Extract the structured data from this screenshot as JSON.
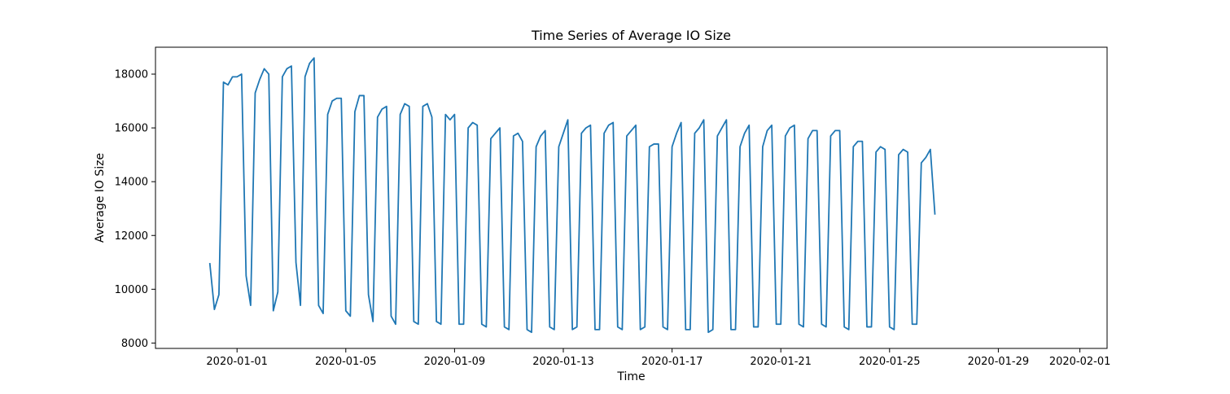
{
  "chart_data": {
    "type": "line",
    "title": "Time Series of Average IO Size",
    "xlabel": "Time",
    "ylabel": "Average IO Size",
    "grid": false,
    "legend": "none",
    "xlim": [
      "2019-12-29",
      "2020-02-02"
    ],
    "ylim": [
      7800,
      19000
    ],
    "x_ticks": [
      "2020-01-01",
      "2020-01-05",
      "2020-01-09",
      "2020-01-13",
      "2020-01-17",
      "2020-01-21",
      "2020-01-25",
      "2020-01-29",
      "2020-02-01"
    ],
    "y_ticks": [
      8000,
      10000,
      12000,
      14000,
      16000,
      18000
    ],
    "line_color": "#1f77b4",
    "series": [
      {
        "x_start": "2019-12-31",
        "interval_hours": 4,
        "values": [
          10950,
          9250,
          9800,
          17700,
          17600,
          17900,
          17900,
          18000,
          10500,
          9400,
          17300,
          17800,
          18200,
          18000,
          9200,
          9900,
          17900,
          18200,
          18300,
          11000,
          9400,
          17900,
          18400,
          18600,
          9400,
          9100,
          16500,
          17000,
          17100,
          17100,
          9200,
          9000,
          16600,
          17200,
          17200,
          9800,
          8800,
          16400,
          16700,
          16800,
          9000,
          8700,
          16500,
          16900,
          16800,
          8800,
          8700,
          16800,
          16900,
          16400,
          8800,
          8700,
          16500,
          16300,
          16500,
          8700,
          8700,
          16000,
          16200,
          16100,
          8700,
          8600,
          15600,
          15800,
          16000,
          8600,
          8500,
          15700,
          15800,
          15500,
          8500,
          8400,
          15300,
          15700,
          15900,
          8600,
          8500,
          15300,
          15800,
          16300,
          8500,
          8600,
          15800,
          16000,
          16100,
          8500,
          8500,
          15800,
          16100,
          16200,
          8600,
          8500,
          15700,
          15900,
          16100,
          8500,
          8600,
          15300,
          15400,
          15400,
          8600,
          8500,
          15300,
          15800,
          16200,
          8500,
          8500,
          15800,
          16000,
          16300,
          8400,
          8500,
          15700,
          16000,
          16300,
          8500,
          8500,
          15300,
          15800,
          16100,
          8600,
          8600,
          15300,
          15900,
          16100,
          8700,
          8700,
          15700,
          16000,
          16100,
          8700,
          8600,
          15600,
          15900,
          15900,
          8700,
          8600,
          15700,
          15900,
          15900,
          8600,
          8500,
          15300,
          15500,
          15500,
          8600,
          8600,
          15100,
          15300,
          15200,
          8600,
          8500,
          15000,
          15200,
          15100,
          8700,
          8700,
          14700,
          14900,
          15200,
          12800
        ]
      }
    ]
  }
}
